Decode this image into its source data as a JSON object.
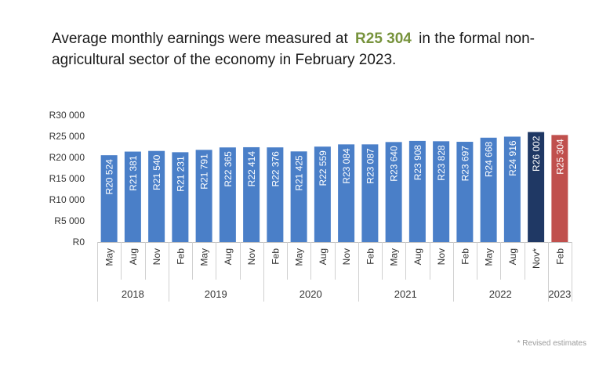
{
  "headline": {
    "before": "Average monthly earnings were measured at",
    "value": "R25 304",
    "after": "in the formal non-agricultural sector of the economy in February 2023."
  },
  "footnote": "* Revised estimates",
  "colors": {
    "bar": "#4a7fc8",
    "highlight_prev": "#1f3864",
    "highlight_last": "#c0504d",
    "headline_value": "#77933c"
  },
  "chart_data": {
    "type": "bar",
    "title": "",
    "xlabel": "",
    "ylabel": "",
    "ylim": [
      0,
      30000
    ],
    "y_ticks": [
      "R0",
      "R5 000",
      "R10 000",
      "R15 000",
      "R20 000",
      "R25 000",
      "R30 000"
    ],
    "grid": false,
    "categories": [
      "May",
      "Aug",
      "Nov",
      "Feb",
      "May",
      "Aug",
      "Nov",
      "Feb",
      "May",
      "Aug",
      "Nov",
      "Feb",
      "May",
      "Aug",
      "Nov",
      "Feb",
      "May",
      "Aug",
      "Nov*",
      "Feb"
    ],
    "years": [
      {
        "label": "2018",
        "count": 3
      },
      {
        "label": "2019",
        "count": 4
      },
      {
        "label": "2020",
        "count": 4
      },
      {
        "label": "2021",
        "count": 4
      },
      {
        "label": "2022",
        "count": 4
      },
      {
        "label": "2023",
        "count": 1
      }
    ],
    "values": [
      20524,
      21381,
      21540,
      21231,
      21791,
      22365,
      22414,
      22376,
      21425,
      22559,
      23084,
      23087,
      23640,
      23908,
      23828,
      23697,
      24668,
      24916,
      26002,
      25304
    ],
    "data_labels": [
      "R20 524",
      "R21 381",
      "R21 540",
      "R21 231",
      "R21 791",
      "R22 365",
      "R22 414",
      "R22 376",
      "R21 425",
      "R22 559",
      "R23 084",
      "R23 087",
      "R23 640",
      "R23 908",
      "R23 828",
      "R23 697",
      "R24 668",
      "R24 916",
      "R26 002",
      "R25 304"
    ]
  }
}
